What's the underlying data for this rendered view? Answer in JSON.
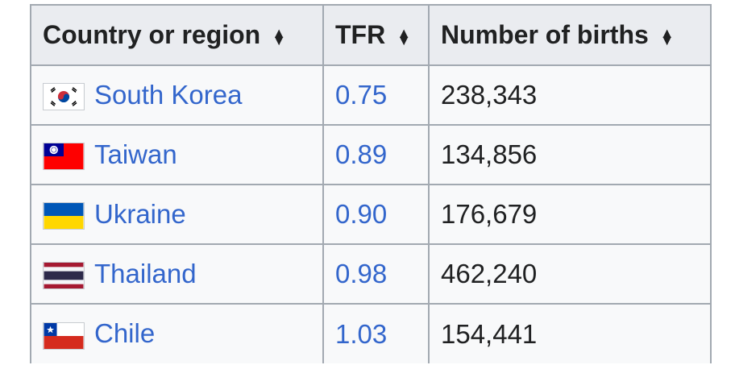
{
  "table": {
    "headers": {
      "country": "Country or region",
      "tfr": "TFR",
      "births": "Number of births"
    },
    "rows": [
      {
        "country": "South Korea",
        "flag": "flag-south-korea-icon",
        "tfr": "0.75",
        "births": "238,343"
      },
      {
        "country": "Taiwan",
        "flag": "flag-taiwan-icon",
        "tfr": "0.89",
        "births": "134,856"
      },
      {
        "country": "Ukraine",
        "flag": "flag-ukraine-icon",
        "tfr": "0.90",
        "births": "176,679"
      },
      {
        "country": "Thailand",
        "flag": "flag-thailand-icon",
        "tfr": "0.98",
        "births": "462,240"
      },
      {
        "country": "Chile",
        "flag": "flag-chile-icon",
        "tfr": "1.03",
        "births": "154,441"
      }
    ]
  },
  "colors": {
    "link": "#3366cc",
    "header_bg": "#eaecf0",
    "cell_bg": "#f8f9fa",
    "border": "#a2a9b1"
  }
}
